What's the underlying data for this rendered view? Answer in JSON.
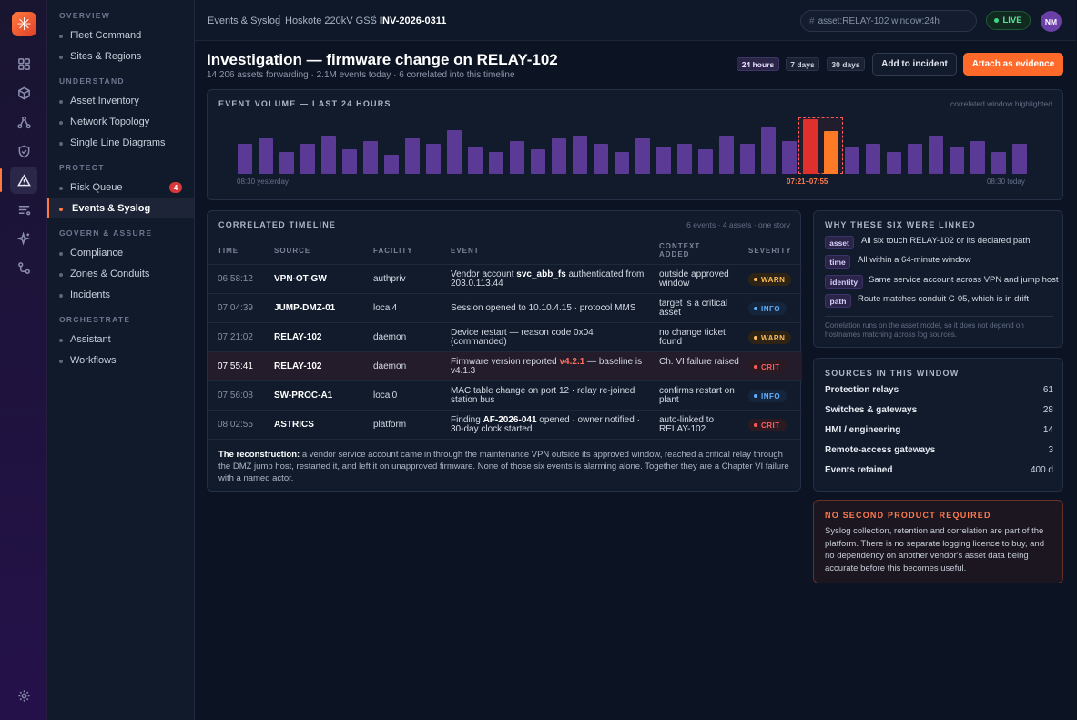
{
  "app": {
    "logo_glyph": "✳",
    "accent": "#ff6a2a"
  },
  "rail": {
    "icons": [
      "grid-icon",
      "cube-icon",
      "topology-icon",
      "shield-icon",
      "alert-triangle-icon",
      "list-icon",
      "sparkle-icon",
      "workflow-icon",
      "settings-icon"
    ]
  },
  "sidebar": {
    "sections": {
      "overview": "OVERVIEW",
      "understand": "UNDERSTAND",
      "protect": "PROTECT",
      "govern": "GOVERN & ASSURE",
      "orchestrate": "ORCHESTRATE"
    },
    "items": {
      "fleet": "Fleet Command",
      "sites": "Sites & Regions",
      "asset_inventory": "Asset Inventory",
      "network_topology": "Network Topology",
      "single_line": "Single Line Diagrams",
      "risk_queue": "Risk Queue",
      "risk_badge": "4",
      "events_syslog": "Events & Syslog",
      "compliance": "Compliance",
      "zones": "Zones & Conduits",
      "incidents": "Incidents",
      "assistant": "Assistant",
      "workflows": "Workflows"
    }
  },
  "header": {
    "breadcrumb": [
      "Events & Syslog",
      "Hoskote 220kV GSS",
      "INV-2026-0311"
    ],
    "search_value": "asset:RELAY-102 window:24h",
    "search_prefix": "#",
    "live_label": "LIVE",
    "avatar_initials": "NM"
  },
  "page": {
    "title": "Investigation — firmware change on RELAY-102",
    "subtitle": "14,206 assets forwarding · 2.1M events today · 6 correlated into this timeline",
    "ranges": [
      "24 hours",
      "7 days",
      "30 days"
    ],
    "add_incident": "Add to incident",
    "attach_evidence": "Attach as evidence"
  },
  "volume": {
    "title": "EVENT VOLUME — LAST 24 HOURS",
    "note": "correlated window highlighted",
    "start_label": "08:30 yesterday",
    "window_label": "07:21–07:55",
    "end_label": "08:30 today"
  },
  "chart_data": {
    "type": "bar",
    "title": "EVENT VOLUME — LAST 24 HOURS",
    "values": [
      0.55,
      0.65,
      0.4,
      0.55,
      0.7,
      0.45,
      0.6,
      0.35,
      0.65,
      0.55,
      0.8,
      0.5,
      0.4,
      0.6,
      0.45,
      0.65,
      0.7,
      0.55,
      0.4,
      0.65,
      0.5,
      0.55,
      0.45,
      0.7,
      0.55,
      0.85,
      0.6,
      1.0,
      0.78,
      0.5,
      0.55,
      0.4,
      0.55,
      0.7,
      0.5,
      0.6,
      0.4,
      0.55
    ],
    "highlighted_indices": [
      27,
      28
    ],
    "highlight_colors": [
      "#e0302d",
      "#ff7a26"
    ],
    "base_color": "#5a3a95",
    "x_labels": [
      "08:30 yesterday",
      "07:21–07:55",
      "08:30 today"
    ]
  },
  "timeline": {
    "title": "CORRELATED TIMELINE",
    "meta": "6 events · 4 assets · one story",
    "headers": {
      "time": "TIME",
      "source": "SOURCE",
      "facility": "FACILITY",
      "event": "EVENT",
      "context": "CONTEXT ADDED",
      "severity": "SEVERITY"
    },
    "rows": [
      {
        "time": "06:58:12",
        "source": "VPN-OT-GW",
        "facility": "authpriv",
        "event_pre": "Vendor account ",
        "event_b": "svc_abb_fs",
        "event_post": " authenticated from 203.0.113.44",
        "context": "outside approved window",
        "severity": "WARN"
      },
      {
        "time": "07:04:39",
        "source": "JUMP-DMZ-01",
        "facility": "local4",
        "event_pre": "Session opened to 10.10.4.15 · protocol MMS",
        "event_b": "",
        "event_post": "",
        "context": "target is a critical asset",
        "severity": "INFO"
      },
      {
        "time": "07:21:02",
        "source": "RELAY-102",
        "facility": "daemon",
        "event_pre": "Device restart — reason code 0x04 (commanded)",
        "event_b": "",
        "event_post": "",
        "context": "no change ticket found",
        "severity": "WARN"
      },
      {
        "time": "07:55:41",
        "source": "RELAY-102",
        "facility": "daemon",
        "event_pre": "Firmware version reported ",
        "event_v": "v4.2.1",
        "event_post": " — baseline is v4.1.3",
        "context": "Ch. VI failure raised",
        "severity": "CRIT"
      },
      {
        "time": "07:56:08",
        "source": "SW-PROC-A1",
        "facility": "local0",
        "event_pre": "MAC table change on port 12 · relay re-joined station bus",
        "event_b": "",
        "event_post": "",
        "context": "confirms restart on plant",
        "severity": "INFO"
      },
      {
        "time": "08:02:55",
        "source": "ASTRICS",
        "facility": "platform",
        "event_pre": "Finding ",
        "event_b": "AF-2026-041",
        "event_post": " opened · owner notified · 30-day clock started",
        "context": "auto-linked to RELAY-102",
        "severity": "CRIT"
      }
    ],
    "recon_label": "The reconstruction:",
    "recon_text": " a vendor service account came in through the maintenance VPN outside its approved window, reached a critical relay through the DMZ jump host, restarted it, and left it on unapproved firmware. None of those six events is alarming alone. Together they are a Chapter VI failure with a named actor."
  },
  "why": {
    "title": "WHY THESE SIX WERE LINKED",
    "items": [
      {
        "tag": "asset",
        "text": "All six touch RELAY-102 or its declared path"
      },
      {
        "tag": "time",
        "text": "All within a 64-minute window"
      },
      {
        "tag": "identity",
        "text": "Same service account across VPN and jump host"
      },
      {
        "tag": "path",
        "text": "Route matches conduit C-05, which is in drift"
      }
    ],
    "footer": "Correlation runs on the asset model, so it does not depend on hostnames matching across log sources."
  },
  "sources": {
    "title": "SOURCES IN THIS WINDOW",
    "rows": [
      {
        "label": "Protection relays",
        "value": "61"
      },
      {
        "label": "Switches & gateways",
        "value": "28"
      },
      {
        "label": "HMI / engineering",
        "value": "14"
      },
      {
        "label": "Remote-access gateways",
        "value": "3"
      },
      {
        "label": "Events retained",
        "value": "400 d"
      }
    ]
  },
  "notice": {
    "title": "NO SECOND PRODUCT REQUIRED",
    "text": "Syslog collection, retention and correlation are part of the platform. There is no separate logging licence to buy, and no dependency on another vendor's asset data being accurate before this becomes useful."
  }
}
